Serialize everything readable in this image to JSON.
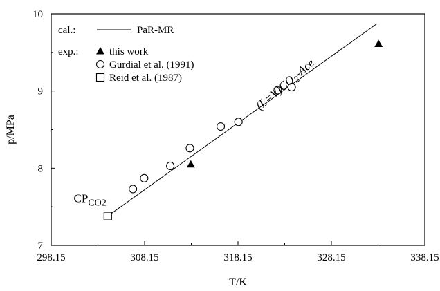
{
  "chart_data": {
    "type": "scatter",
    "xlabel": "T/K",
    "ylabel": "p/MPa",
    "xlim": [
      298.15,
      338.15
    ],
    "ylim": [
      7,
      10
    ],
    "x_ticks": [
      "298.15",
      "308.15",
      "318.15",
      "328.15",
      "338.15"
    ],
    "y_ticks": [
      "7",
      "8",
      "9",
      "10"
    ],
    "grid": false,
    "legend": {
      "position": "top-left",
      "cal_header": "cal.:",
      "exp_header": "exp.:",
      "entries": [
        {
          "group": "cal",
          "marker": "line",
          "label": "PaR-MR"
        },
        {
          "group": "exp",
          "marker": "filled-triangle",
          "label": "this work"
        },
        {
          "group": "exp",
          "marker": "open-circle",
          "label": "Gurdial et al. (1991)"
        },
        {
          "group": "exp",
          "marker": "open-square",
          "label": "Reid et al. (1987)"
        }
      ]
    },
    "series": [
      {
        "name": "PaR-MR",
        "kind": "line",
        "points": [
          [
            304.21,
            7.38
          ],
          [
            333.0,
            9.87
          ]
        ]
      },
      {
        "name": "this work",
        "kind": "filled-triangle",
        "points": [
          [
            313.1,
            8.05
          ],
          [
            333.2,
            9.61
          ]
        ]
      },
      {
        "name": "Gurdial et al. (1991)",
        "kind": "open-circle",
        "points": [
          [
            306.9,
            7.73
          ],
          [
            308.1,
            7.87
          ],
          [
            310.9,
            8.03
          ],
          [
            313.0,
            8.26
          ],
          [
            316.3,
            8.54
          ],
          [
            318.2,
            8.6
          ],
          [
            322.4,
            9.01
          ],
          [
            323.9,
            9.05
          ]
        ]
      },
      {
        "name": "Reid et al. (1987)",
        "kind": "open-square",
        "points": [
          [
            304.21,
            7.38
          ]
        ]
      }
    ],
    "annotations": {
      "cp": {
        "main": "CP",
        "sub": "CO2",
        "at": [
          304.21,
          7.38
        ]
      },
      "curve": {
        "prefix": "(L=V)CO",
        "sub": "2",
        "suffix": "-Ace",
        "at": [
          320.5,
          8.75
        ]
      }
    }
  }
}
